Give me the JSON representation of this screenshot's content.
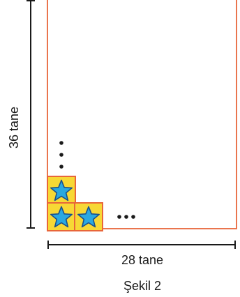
{
  "diagram": {
    "height_label": "36 tane",
    "width_label": "28 tane",
    "caption": "Şekil 2"
  },
  "colors": {
    "frame": "#e8663a",
    "tile_fill": "#f7d835",
    "tile_border": "#e8663a",
    "star_fill": "#2aa8e0",
    "star_stroke": "#1a4f8a",
    "ink": "#1a1a1a"
  },
  "icons": {
    "tile": "star-icon",
    "continuation": "ellipsis"
  }
}
